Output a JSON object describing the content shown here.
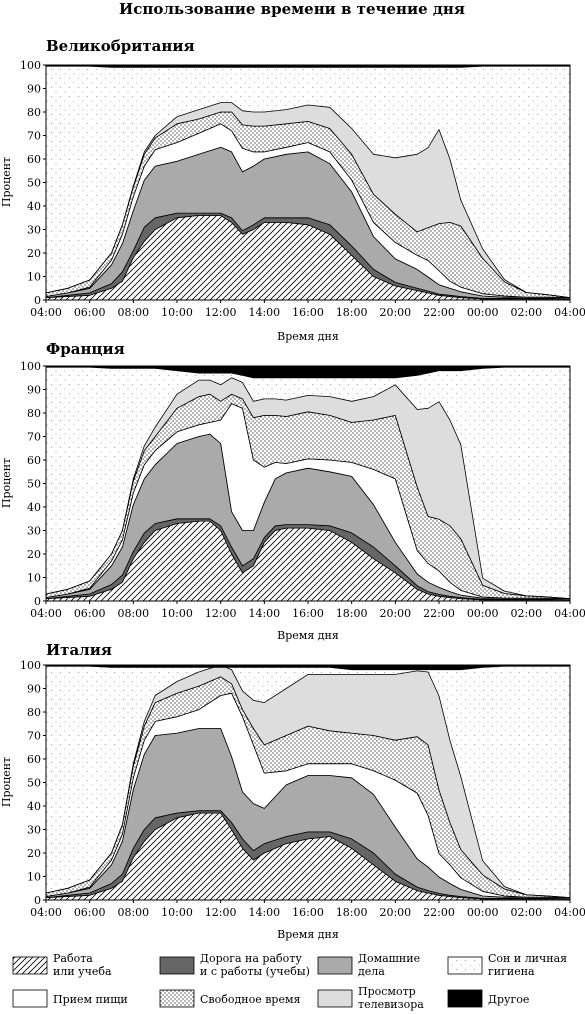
{
  "title": "Использование времени в течение дня",
  "chart_data": [
    {
      "type": "area",
      "title": "Великобритания",
      "xlabel": "Время дня",
      "ylabel": "Процент",
      "ylim": [
        0,
        100
      ],
      "grid": false,
      "x_ticks": [
        "04:00",
        "06:00",
        "08:00",
        "10:00",
        "12:00",
        "14:00",
        "16:00",
        "18:00",
        "20:00",
        "22:00",
        "00:00",
        "02:00",
        "04:00"
      ],
      "y_ticks": [
        0,
        10,
        20,
        30,
        40,
        50,
        60,
        70,
        80,
        90,
        100
      ],
      "x_hours": [
        4,
        5,
        6,
        7,
        7.5,
        8,
        8.5,
        9,
        10,
        11,
        12,
        12.5,
        13,
        13.5,
        14,
        15,
        16,
        17,
        18,
        19,
        20,
        21,
        21.5,
        22,
        22.5,
        23,
        24,
        25,
        26,
        27,
        28
      ],
      "series": [
        {
          "name": "Работа или учеба",
          "values": [
            1,
            1.5,
            2,
            5,
            8,
            18,
            25,
            30,
            35,
            36,
            36,
            33,
            28,
            30,
            33,
            33,
            32,
            28,
            19,
            10,
            6,
            4,
            3,
            2,
            1.5,
            1,
            0.5,
            0.5,
            0.5,
            0.5,
            0.5
          ]
        },
        {
          "name": "Дорога на работу и с работы (учебы)",
          "values": [
            0,
            0.5,
            1,
            2,
            4,
            3,
            6,
            5,
            2,
            1,
            1,
            2,
            1.5,
            2,
            2,
            2,
            3,
            4,
            4,
            3,
            1.5,
            1,
            0.8,
            0.5,
            0.5,
            0.5,
            0.2,
            0.2,
            0.2,
            0.2,
            0
          ]
        },
        {
          "name": "Домашние дела",
          "values": [
            0.5,
            1,
            2,
            8,
            12,
            17,
            20,
            22,
            22,
            25,
            28,
            28,
            25,
            25,
            25,
            27,
            28,
            26,
            23,
            14,
            10,
            8,
            6,
            4,
            3,
            2,
            1,
            0.5,
            0.5,
            0.5,
            0.5
          ]
        },
        {
          "name": "Прием пищи",
          "values": [
            0,
            0,
            0.5,
            2,
            4,
            6,
            6,
            7,
            8,
            9,
            10,
            9,
            10,
            6,
            3,
            3,
            4,
            5,
            5,
            6,
            7,
            6,
            7,
            6,
            3,
            2,
            1,
            0.5,
            0,
            0,
            0
          ]
        },
        {
          "name": "Свободное время",
          "values": [
            1.5,
            2,
            3,
            3,
            4,
            4,
            5,
            5,
            8,
            6,
            5,
            8,
            10,
            11,
            11,
            10,
            9,
            10,
            11,
            12,
            12,
            10,
            14,
            20,
            25,
            26,
            15,
            6,
            2,
            1,
            0
          ]
        },
        {
          "name": "Просмотр телевизора",
          "values": [
            0,
            0,
            0,
            0,
            0,
            0.5,
            1,
            1,
            3,
            4,
            4,
            4,
            6,
            6,
            6,
            6,
            7,
            9,
            11,
            17,
            24,
            33,
            34,
            40,
            27,
            11,
            4,
            1,
            0,
            0,
            0
          ]
        },
        {
          "name": "Другое",
          "values": [
            0.5,
            0.5,
            0.5,
            1,
            1,
            1,
            1,
            1,
            1,
            1,
            1,
            1,
            1,
            1,
            1,
            1,
            1,
            1,
            1,
            1,
            1,
            1,
            1,
            1,
            1,
            1,
            0.5,
            0.5,
            0.5,
            0.5,
            0.5
          ]
        }
      ]
    },
    {
      "type": "area",
      "title": "Франция",
      "xlabel": "Время дня",
      "ylabel": "Процент",
      "ylim": [
        0,
        100
      ],
      "grid": false,
      "x_ticks": [
        "04:00",
        "06:00",
        "08:00",
        "10:00",
        "12:00",
        "14:00",
        "16:00",
        "18:00",
        "20:00",
        "22:00",
        "00:00",
        "02:00",
        "04:00"
      ],
      "y_ticks": [
        0,
        10,
        20,
        30,
        40,
        50,
        60,
        70,
        80,
        90,
        100
      ],
      "x_hours": [
        4,
        5,
        6,
        7,
        7.5,
        8,
        8.5,
        9,
        10,
        11,
        11.5,
        12,
        12.5,
        13,
        13.5,
        14,
        14.5,
        15,
        16,
        17,
        18,
        19,
        20,
        21,
        21.5,
        22,
        22.5,
        23,
        24,
        25,
        26,
        27,
        28
      ],
      "series": [
        {
          "name": "Работа или учеба",
          "values": [
            1,
            1.5,
            2,
            5,
            8,
            18,
            25,
            30,
            33,
            34,
            34,
            30,
            20,
            12,
            15,
            25,
            30,
            31,
            31,
            30,
            25,
            18,
            12,
            5,
            3,
            2,
            1.5,
            1,
            0.5,
            0.5,
            0.5,
            0.5,
            0.5
          ]
        },
        {
          "name": "Дорога на работу и с работы (учебы)",
          "values": [
            0,
            0.5,
            1,
            2,
            3,
            3,
            4,
            3,
            2,
            1,
            1,
            2,
            3,
            3,
            3,
            2,
            2,
            1.5,
            1.5,
            2,
            4,
            5,
            3,
            1.5,
            1,
            0.8,
            0.5,
            0.5,
            0.2,
            0.2,
            0.2,
            0.2,
            0
          ]
        },
        {
          "name": "Домашние дела",
          "values": [
            0.5,
            1,
            2,
            8,
            12,
            20,
            23,
            25,
            32,
            35,
            36,
            35,
            15,
            15,
            12,
            15,
            20,
            22,
            24,
            23,
            24,
            18,
            10,
            5,
            4,
            3,
            2,
            1,
            0.5,
            0.5,
            0.5,
            0.5,
            0.5
          ]
        },
        {
          "name": "Прием пищи",
          "values": [
            0,
            0,
            0.5,
            2,
            3,
            5,
            6,
            6,
            5,
            5,
            5,
            10,
            46,
            52,
            30,
            15,
            7,
            4,
            4,
            5,
            6,
            15,
            27,
            10,
            8,
            7,
            4,
            2,
            0.5,
            0,
            0,
            0,
            0
          ]
        },
        {
          "name": "Свободное время",
          "values": [
            1.5,
            2,
            3,
            3,
            4,
            5,
            6,
            6,
            10,
            12,
            12,
            8,
            4,
            4,
            18,
            22,
            20,
            20,
            20,
            19,
            17,
            21,
            27,
            27,
            20,
            22,
            24,
            22,
            5,
            2,
            1,
            0.5,
            0
          ]
        },
        {
          "name": "Просмотр телевизора",
          "values": [
            0,
            0,
            0,
            0,
            0,
            1,
            2,
            4,
            6,
            7,
            6,
            7,
            7,
            7,
            7,
            7,
            7,
            7,
            7,
            8,
            9,
            10,
            13,
            33,
            46,
            50,
            45,
            40,
            3,
            1,
            0,
            0,
            0
          ]
        },
        {
          "name": "Другое",
          "values": [
            0.5,
            0.5,
            0.5,
            1,
            1,
            1,
            1,
            1,
            2,
            3,
            3,
            3,
            3,
            4,
            5,
            5,
            5,
            5,
            5,
            5,
            5,
            5,
            5,
            4,
            3,
            2,
            2,
            2,
            1,
            0.5,
            0.5,
            0.5,
            0.5
          ]
        }
      ]
    },
    {
      "type": "area",
      "title": "Италия",
      "xlabel": "Время дня",
      "ylabel": "Процент",
      "ylim": [
        0,
        100
      ],
      "grid": false,
      "x_ticks": [
        "04:00",
        "06:00",
        "08:00",
        "10:00",
        "12:00",
        "14:00",
        "16:00",
        "18:00",
        "20:00",
        "22:00",
        "00:00",
        "02:00",
        "04:00"
      ],
      "y_ticks": [
        0,
        10,
        20,
        30,
        40,
        50,
        60,
        70,
        80,
        90,
        100
      ],
      "x_hours": [
        4,
        5,
        6,
        7,
        7.5,
        8,
        8.5,
        9,
        10,
        11,
        12,
        12.5,
        13,
        13.5,
        14,
        15,
        16,
        17,
        18,
        19,
        20,
        21,
        21.5,
        22,
        22.5,
        23,
        24,
        25,
        26,
        27,
        28
      ],
      "series": [
        {
          "name": "Работа или учеба",
          "values": [
            1,
            1.5,
            2,
            5,
            8,
            18,
            25,
            30,
            35,
            37,
            37,
            30,
            22,
            17,
            20,
            24,
            26,
            27,
            22,
            15,
            8,
            4,
            3,
            2,
            1.5,
            1,
            0.5,
            0.5,
            0.5,
            0.5,
            0.5
          ]
        },
        {
          "name": "Дорога на работу и с работы (учебы)",
          "values": [
            0,
            0.5,
            1,
            2,
            3,
            4,
            5,
            5,
            2,
            1,
            1,
            3,
            4,
            4,
            4,
            3,
            3,
            2,
            4,
            5,
            3,
            1.5,
            1,
            0.8,
            0.5,
            0.5,
            0.2,
            0.2,
            0.2,
            0.2,
            0
          ]
        },
        {
          "name": "Домашние дела",
          "values": [
            0.5,
            1,
            2,
            8,
            14,
            25,
            32,
            35,
            34,
            35,
            35,
            28,
            20,
            20,
            15,
            22,
            24,
            24,
            26,
            25,
            20,
            12,
            10,
            7,
            5,
            3,
            1,
            0.5,
            0.5,
            0.5,
            0.5
          ]
        },
        {
          "name": "Прием пищи",
          "values": [
            0,
            0,
            0.5,
            2,
            3,
            5,
            6,
            6,
            7,
            8,
            14,
            27,
            32,
            25,
            15,
            6,
            5,
            5,
            6,
            10,
            20,
            28,
            22,
            10,
            8,
            5,
            2,
            0.5,
            0,
            0,
            0
          ]
        },
        {
          "name": "Свободное время",
          "values": [
            1.5,
            2,
            3,
            3,
            4,
            5,
            6,
            8,
            10,
            10,
            8,
            4,
            3,
            7,
            12,
            15,
            16,
            14,
            13,
            15,
            17,
            24,
            30,
            27,
            18,
            12,
            7,
            3,
            1,
            0.5,
            0
          ]
        },
        {
          "name": "Просмотр телевизора",
          "values": [
            0,
            0,
            0,
            0,
            0,
            1,
            2,
            3,
            5,
            6,
            5,
            6,
            8,
            12,
            18,
            20,
            22,
            24,
            25,
            26,
            28,
            28,
            31,
            40,
            35,
            31,
            6,
            1,
            0,
            0,
            0
          ]
        },
        {
          "name": "Другое",
          "values": [
            0.5,
            0.5,
            0.5,
            1,
            1,
            1,
            1,
            1,
            1,
            1,
            1,
            1,
            1,
            1,
            1,
            1,
            1,
            1,
            2,
            2,
            2,
            2,
            2,
            2,
            2,
            2,
            1,
            0.5,
            0.5,
            0.5,
            0.5
          ]
        }
      ]
    }
  ],
  "legend": [
    {
      "name": "Работа или учеба",
      "lines": [
        "Работа",
        "или учеба"
      ]
    },
    {
      "name": "Дорога на работу и с работы (учебы)",
      "lines": [
        "Дорога на работу",
        "и с работы (учебы)"
      ]
    },
    {
      "name": "Домашние дела",
      "lines": [
        "Домашние",
        "дела"
      ]
    },
    {
      "name": "Сон и личная гигиена",
      "lines": [
        "Сон и личная",
        "гигиена"
      ]
    },
    {
      "name": "Прием пищи",
      "lines": [
        "Прием пищи"
      ]
    },
    {
      "name": "Свободное время",
      "lines": [
        "Свободное время"
      ]
    },
    {
      "name": "Просмотр телевизора",
      "lines": [
        "Просмотр",
        "телевизора"
      ]
    },
    {
      "name": "Другое",
      "lines": [
        "Другое"
      ]
    }
  ],
  "fills": {
    "Работа или учеба": "hatch",
    "Дорога на работу и с работы (учебы)": "#666666",
    "Домашние дела": "#aaaaaa",
    "Сон и личная гигиена": "dots-sparse",
    "Прием пищи": "#ffffff",
    "Свободное время": "dots-dense",
    "Просмотр телевизора": "#dddddd",
    "Другое": "#000000"
  }
}
